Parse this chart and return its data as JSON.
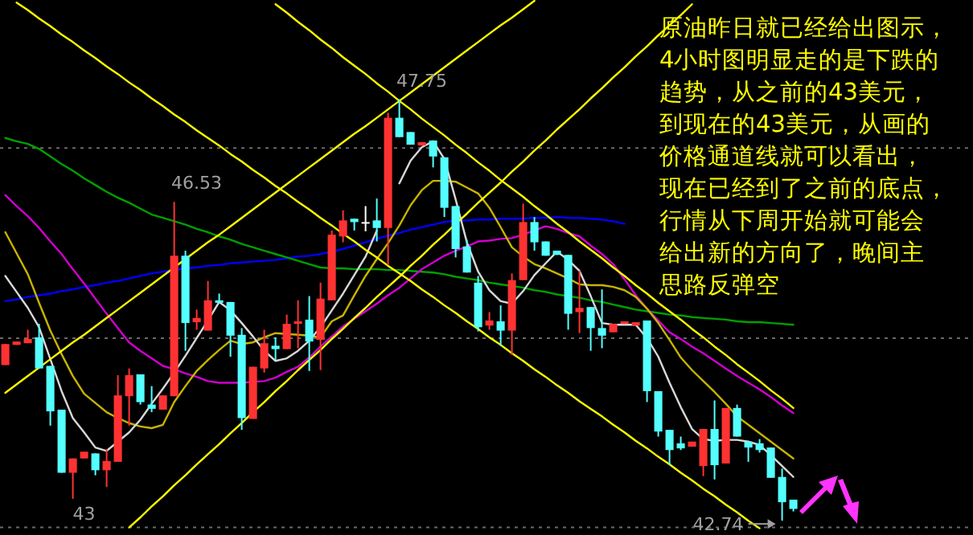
{
  "chart_data": {
    "type": "candlestick",
    "categories": [
      null,
      null,
      null,
      null,
      null,
      null,
      null,
      null,
      null,
      null,
      null,
      null,
      null,
      null,
      null,
      null,
      null,
      null,
      null,
      null,
      null,
      null,
      null,
      null,
      null,
      null,
      null,
      null,
      null,
      null,
      null,
      null,
      null,
      null,
      null,
      null,
      null,
      null,
      null,
      null,
      null,
      null,
      null,
      null,
      null,
      null,
      null,
      null,
      null,
      null,
      null,
      null,
      null,
      null,
      null,
      null,
      null,
      null,
      null,
      null,
      null,
      null,
      null,
      null,
      null,
      null,
      null,
      null,
      null,
      null,
      null
    ],
    "ohlc": [
      [
        44.59,
        44.84,
        44.59,
        44.84
      ],
      [
        44.83,
        44.87,
        44.83,
        44.87
      ],
      [
        44.85,
        45.01,
        44.85,
        44.9
      ],
      [
        44.92,
        45.08,
        44.55,
        44.55
      ],
      [
        44.58,
        44.58,
        43.87,
        44.04
      ],
      [
        44.06,
        44.06,
        43.31,
        43.31
      ],
      [
        43.31,
        43.48,
        43.0,
        43.48
      ],
      [
        43.48,
        43.56,
        43.48,
        43.56
      ],
      [
        43.54,
        43.54,
        43.28,
        43.34
      ],
      [
        43.34,
        43.59,
        43.14,
        43.45
      ],
      [
        43.44,
        44.47,
        43.44,
        44.23
      ],
      [
        44.22,
        44.55,
        43.87,
        44.47
      ],
      [
        44.48,
        44.48,
        44.12,
        44.15
      ],
      [
        44.12,
        44.34,
        44.03,
        44.07
      ],
      [
        44.06,
        44.23,
        44.06,
        44.23
      ],
      [
        44.22,
        46.53,
        44.22,
        45.89
      ],
      [
        45.89,
        45.95,
        44.76,
        45.09
      ],
      [
        45.1,
        45.25,
        45.01,
        45.15
      ],
      [
        45.0,
        45.59,
        45.0,
        45.36
      ],
      [
        45.36,
        45.44,
        45.33,
        45.33
      ],
      [
        45.34,
        45.34,
        44.69,
        44.94
      ],
      [
        44.95,
        45.03,
        43.82,
        43.96
      ],
      [
        43.95,
        44.57,
        43.95,
        44.57
      ],
      [
        44.55,
        45.01,
        44.5,
        44.85
      ],
      [
        44.82,
        44.92,
        44.65,
        44.78
      ],
      [
        44.78,
        45.19,
        44.78,
        45.08
      ],
      [
        45.08,
        45.36,
        44.79,
        45.11
      ],
      [
        45.13,
        45.41,
        44.52,
        44.87
      ],
      [
        44.89,
        45.57,
        44.53,
        45.38
      ],
      [
        45.36,
        46.19,
        45.36,
        46.14
      ],
      [
        46.12,
        46.43,
        46.05,
        46.31
      ],
      [
        46.33,
        46.33,
        46.19,
        46.29
      ],
      [
        46.29,
        46.48,
        46.18,
        46.29
      ],
      [
        46.31,
        46.57,
        46.06,
        46.22
      ],
      [
        46.22,
        47.59,
        45.78,
        47.53
      ],
      [
        47.53,
        47.75,
        47.3,
        47.3
      ],
      [
        47.36,
        47.36,
        47.21,
        47.21
      ],
      [
        47.2,
        47.24,
        47.2,
        47.24
      ],
      [
        47.26,
        47.26,
        46.94,
        47.07
      ],
      [
        47.06,
        47.06,
        46.35,
        46.46
      ],
      [
        46.48,
        46.48,
        45.87,
        45.97
      ],
      [
        46.0,
        46.08,
        45.69,
        45.69
      ],
      [
        45.57,
        45.65,
        44.99,
        45.04
      ],
      [
        45.06,
        45.22,
        45.01,
        45.12
      ],
      [
        45.11,
        45.3,
        44.82,
        45.0
      ],
      [
        45.0,
        45.68,
        44.71,
        45.6
      ],
      [
        45.6,
        46.51,
        45.6,
        46.29
      ],
      [
        46.29,
        46.35,
        45.95,
        46.05
      ],
      [
        46.06,
        46.06,
        45.89,
        45.89
      ],
      [
        45.95,
        45.95,
        45.9,
        45.9
      ],
      [
        45.9,
        45.9,
        45.01,
        45.2
      ],
      [
        45.22,
        45.71,
        44.97,
        45.27
      ],
      [
        45.28,
        45.28,
        44.76,
        45.03
      ],
      [
        45.03,
        45.49,
        44.79,
        44.94
      ],
      [
        44.98,
        45.08,
        44.98,
        45.08
      ],
      [
        45.08,
        45.11,
        45.08,
        45.11
      ],
      [
        45.06,
        45.1,
        45.06,
        45.1
      ],
      [
        45.12,
        45.12,
        44.15,
        44.28
      ],
      [
        44.28,
        44.28,
        43.74,
        43.8
      ],
      [
        43.82,
        43.82,
        43.4,
        43.58
      ],
      [
        43.66,
        43.74,
        43.58,
        43.6
      ],
      [
        43.62,
        43.68,
        43.62,
        43.68
      ],
      [
        43.39,
        43.83,
        43.27,
        43.83
      ],
      [
        43.83,
        44.17,
        43.23,
        43.4
      ],
      [
        43.42,
        44.08,
        43.42,
        44.08
      ],
      [
        44.08,
        44.12,
        43.74,
        43.74
      ],
      [
        43.68,
        43.68,
        43.44,
        43.61
      ],
      [
        43.66,
        43.71,
        43.55,
        43.58
      ],
      [
        43.61,
        43.61,
        43.25,
        43.25
      ],
      [
        43.26,
        43.36,
        42.74,
        42.96
      ],
      [
        42.99,
        42.99,
        42.85,
        42.88
      ]
    ],
    "colors": [
      "#ff3232",
      "#ff3232",
      "#ff3232",
      "#54ffff",
      "#54ffff",
      "#54ffff",
      "#ff3232",
      "#ff3232",
      "#54ffff",
      "#ff3232",
      "#ff3232",
      "#ff3232",
      "#54ffff",
      "#54ffff",
      "#ff3232",
      "#ff3232",
      "#54ffff",
      "#ff3232",
      "#ff3232",
      "#54ffff",
      "#54ffff",
      "#54ffff",
      "#ff3232",
      "#ff3232",
      "#54ffff",
      "#ff3232",
      "#ff3232",
      "#54ffff",
      "#ff3232",
      "#ff3232",
      "#ff3232",
      "#54ffff",
      "#ffffff",
      "#54ffff",
      "#ff3232",
      "#54ffff",
      "#54ffff",
      "#ff3232",
      "#54ffff",
      "#54ffff",
      "#54ffff",
      "#54ffff",
      "#54ffff",
      "#ff3232",
      "#54ffff",
      "#ff3232",
      "#ff3232",
      "#54ffff",
      "#54ffff",
      "#54ffff",
      "#54ffff",
      "#ff3232",
      "#54ffff",
      "#54ffff",
      "#ff3232",
      "#ff3232",
      "#ff3232",
      "#54ffff",
      "#54ffff",
      "#54ffff",
      "#54ffff",
      "#ff3232",
      "#ff3232",
      "#54ffff",
      "#ff3232",
      "#54ffff",
      "#54ffff",
      "#54ffff",
      "#54ffff",
      "#54ffff",
      "#54ffff"
    ],
    "series": [
      {
        "type": "line",
        "color": "#0000ff",
        "values": [
          45.35,
          45.37,
          45.4,
          45.42,
          45.44,
          45.47,
          45.49,
          45.52,
          45.54,
          45.57,
          45.59,
          45.62,
          45.65,
          45.68,
          45.7,
          45.72,
          45.74,
          45.75,
          45.77,
          45.78,
          45.8,
          45.81,
          45.82,
          45.83,
          45.84,
          45.86,
          45.88,
          45.89,
          45.91,
          45.94,
          45.97,
          46.01,
          46.05,
          46.09,
          46.13,
          46.16,
          46.2,
          46.23,
          46.26,
          46.29,
          46.31,
          46.31,
          46.32,
          46.32,
          46.33,
          46.33,
          46.33,
          46.34,
          46.34,
          46.35,
          46.34,
          46.34,
          46.33,
          46.32,
          46.3,
          46.27,
          null,
          null,
          null,
          null,
          null,
          null,
          null,
          null,
          null,
          null,
          null,
          null,
          null,
          null,
          null
        ]
      },
      {
        "type": "line",
        "color": "#00a000",
        "values": [
          47.29,
          47.25,
          47.22,
          47.16,
          47.07,
          46.98,
          46.9,
          46.81,
          46.73,
          46.65,
          46.58,
          46.52,
          46.45,
          46.38,
          46.34,
          46.3,
          46.26,
          46.21,
          46.17,
          46.12,
          46.08,
          46.03,
          45.99,
          45.95,
          45.91,
          45.87,
          45.83,
          45.79,
          45.75,
          45.74,
          45.74,
          45.73,
          45.73,
          45.73,
          45.72,
          45.72,
          45.71,
          45.7,
          45.69,
          45.67,
          45.64,
          45.62,
          45.6,
          45.57,
          45.55,
          45.53,
          45.51,
          45.48,
          45.46,
          45.43,
          45.41,
          45.39,
          45.36,
          45.34,
          45.31,
          45.28,
          45.25,
          45.23,
          45.21,
          45.19,
          45.18,
          45.16,
          45.15,
          45.14,
          45.13,
          45.11,
          45.1,
          45.1,
          45.09,
          45.08,
          45.07
        ]
      },
      {
        "type": "line",
        "color": "#d000d0",
        "values": [
          46.61,
          46.48,
          46.36,
          46.22,
          46.06,
          45.91,
          45.73,
          45.56,
          45.38,
          45.2,
          45.03,
          44.86,
          44.76,
          44.67,
          44.58,
          44.54,
          44.49,
          44.45,
          44.4,
          44.38,
          44.38,
          44.38,
          44.39,
          44.4,
          44.44,
          44.51,
          44.57,
          44.68,
          44.81,
          44.93,
          45.05,
          45.14,
          45.23,
          45.32,
          45.42,
          45.51,
          45.62,
          45.73,
          45.81,
          45.89,
          45.95,
          46.0,
          46.06,
          46.07,
          46.09,
          46.1,
          46.14,
          46.19,
          46.24,
          46.21,
          46.16,
          46.12,
          46.01,
          45.91,
          45.79,
          45.61,
          45.42,
          45.26,
          45.12,
          44.98,
          44.9,
          44.81,
          44.73,
          44.64,
          44.55,
          44.46,
          44.38,
          44.3,
          44.21,
          44.11,
          44.02
        ]
      },
      {
        "type": "line",
        "color": "#c8b400",
        "values": [
          46.17,
          45.92,
          45.67,
          45.33,
          45.0,
          44.72,
          44.46,
          44.25,
          44.14,
          44.03,
          43.96,
          43.9,
          43.86,
          43.84,
          43.88,
          44.15,
          44.34,
          44.52,
          44.65,
          44.77,
          44.88,
          44.84,
          44.86,
          44.92,
          44.97,
          44.96,
          44.95,
          44.94,
          44.92,
          45.11,
          45.18,
          45.42,
          45.65,
          45.85,
          46.04,
          46.25,
          46.49,
          46.67,
          46.78,
          46.78,
          46.77,
          46.7,
          46.63,
          46.46,
          46.23,
          45.99,
          45.88,
          45.79,
          45.74,
          45.68,
          45.62,
          45.55,
          45.54,
          45.54,
          45.52,
          45.48,
          45.4,
          45.26,
          45.09,
          44.89,
          44.68,
          44.53,
          44.4,
          44.27,
          44.13,
          43.98,
          43.88,
          43.78,
          43.68,
          43.58,
          43.48
        ]
      },
      {
        "type": "line",
        "color": "#d8d8d8",
        "values": [
          45.65,
          45.46,
          45.27,
          45.04,
          44.66,
          44.28,
          43.96,
          43.79,
          43.61,
          43.57,
          43.68,
          43.79,
          43.94,
          44.13,
          44.31,
          44.5,
          44.7,
          44.91,
          45.12,
          45.34,
          45.24,
          45.09,
          44.93,
          44.76,
          44.64,
          44.67,
          44.76,
          44.88,
          45.04,
          45.24,
          45.44,
          45.66,
          45.88,
          46.19,
          null,
          46.75,
          47.02,
          47.18,
          47.25,
          47.04,
          46.56,
          46.05,
          45.7,
          45.48,
          45.35,
          45.32,
          45.47,
          45.66,
          45.8,
          45.94,
          45.84,
          45.71,
          45.41,
          45.09,
          45.07,
          45.07,
          45.07,
          44.91,
          44.69,
          44.38,
          44.09,
          43.83,
          43.71,
          43.69,
          43.7,
          43.7,
          43.68,
          43.64,
          43.52,
          43.39,
          43.26
        ]
      },
      {
        "type": "line",
        "color": "#ffff00",
        "values": [
          null,
          null,
          null,
          null,
          null,
          null,
          null,
          null,
          null,
          null,
          null,
          null,
          null,
          null,
          null,
          null,
          null,
          null,
          null,
          null,
          null,
          null,
          null,
          null,
          48.88,
          48.78,
          48.67,
          48.57,
          48.46,
          48.36,
          48.25,
          48.15,
          48.05,
          47.94,
          47.84,
          47.73,
          47.63,
          47.52,
          47.42,
          47.32,
          47.21,
          47.11,
          47.0,
          46.9,
          46.79,
          46.69,
          46.59,
          46.48,
          46.38,
          46.27,
          46.17,
          46.06,
          45.96,
          45.86,
          45.75,
          45.65,
          45.54,
          45.44,
          45.33,
          45.23,
          45.13,
          45.02,
          44.92,
          44.81,
          44.71,
          44.6,
          44.5,
          44.4,
          44.29,
          44.19,
          44.08
        ]
      },
      {
        "type": "line",
        "color": "#ffff00",
        "values": [
          null,
          48.9,
          48.81,
          48.71,
          48.62,
          48.52,
          48.43,
          48.33,
          48.24,
          48.14,
          48.05,
          47.95,
          47.86,
          47.76,
          47.67,
          47.57,
          47.48,
          47.38,
          47.29,
          47.2,
          47.1,
          47.01,
          46.91,
          46.82,
          46.72,
          46.63,
          46.53,
          46.44,
          46.34,
          46.25,
          46.15,
          46.06,
          45.96,
          45.87,
          45.77,
          45.68,
          45.59,
          45.49,
          45.4,
          45.3,
          45.21,
          45.11,
          45.02,
          44.92,
          44.83,
          44.73,
          44.64,
          44.54,
          44.45,
          44.35,
          44.26,
          44.16,
          44.07,
          43.98,
          43.88,
          43.79,
          43.69,
          43.6,
          43.5,
          43.41,
          43.31,
          43.22,
          43.12,
          43.03,
          42.93,
          42.84,
          42.74,
          42.65,
          null,
          null,
          null
        ]
      },
      {
        "type": "line",
        "color": "#ffff00",
        "values": [
          44.26,
          44.36,
          44.46,
          44.56,
          44.66,
          44.76,
          44.86,
          44.95,
          45.05,
          45.15,
          45.25,
          45.35,
          45.45,
          45.55,
          45.65,
          45.75,
          45.85,
          45.95,
          46.05,
          46.14,
          46.24,
          46.34,
          46.44,
          46.54,
          46.64,
          46.74,
          46.84,
          46.94,
          47.04,
          47.14,
          47.24,
          47.34,
          47.43,
          47.53,
          47.63,
          47.73,
          47.83,
          47.93,
          48.03,
          48.13,
          48.23,
          48.33,
          48.43,
          48.53,
          48.63,
          48.72,
          48.82,
          48.92,
          null,
          null,
          null,
          null,
          null,
          null,
          null,
          null,
          null,
          null,
          null,
          null,
          null,
          null,
          null,
          null,
          null,
          null,
          null,
          null,
          null,
          null,
          null
        ]
      },
      {
        "type": "line",
        "color": "#ffff00",
        "values": [
          null,
          null,
          null,
          null,
          null,
          null,
          null,
          null,
          null,
          null,
          null,
          42.66,
          42.78,
          42.91,
          43.03,
          43.16,
          43.28,
          43.41,
          43.53,
          43.65,
          43.78,
          43.9,
          44.03,
          44.15,
          44.28,
          44.4,
          44.53,
          44.65,
          44.77,
          44.9,
          45.02,
          45.15,
          45.27,
          45.4,
          45.52,
          45.64,
          45.77,
          45.89,
          46.02,
          46.14,
          46.27,
          46.39,
          46.52,
          46.64,
          46.76,
          46.89,
          47.01,
          47.14,
          47.26,
          47.39,
          47.51,
          47.63,
          47.76,
          47.88,
          48.01,
          48.13,
          48.26,
          48.38,
          48.51,
          48.63,
          48.75,
          48.88,
          null,
          null,
          null,
          null,
          null,
          null,
          null,
          null,
          null
        ]
      }
    ],
    "ylim": [
      42.57,
      48.93
    ],
    "yticks": [
      {
        "value": 47.17,
        "label": null
      },
      {
        "value": 44.91,
        "label": null
      },
      {
        "value": 42.66,
        "label": null
      }
    ],
    "grid": "y",
    "annotations": [
      "47.75",
      "46.53",
      "43",
      "42.74",
      "原油昨日就已经给出图示，4小时图明显走的是下跌的趋势，从之前的43美元，到现在的43美元，从画的价格通道线就可以看出，现在已经到了之前的底点，行情从下周开始就可能会给出新的方向了，晚间主思路反弹空"
    ]
  }
}
